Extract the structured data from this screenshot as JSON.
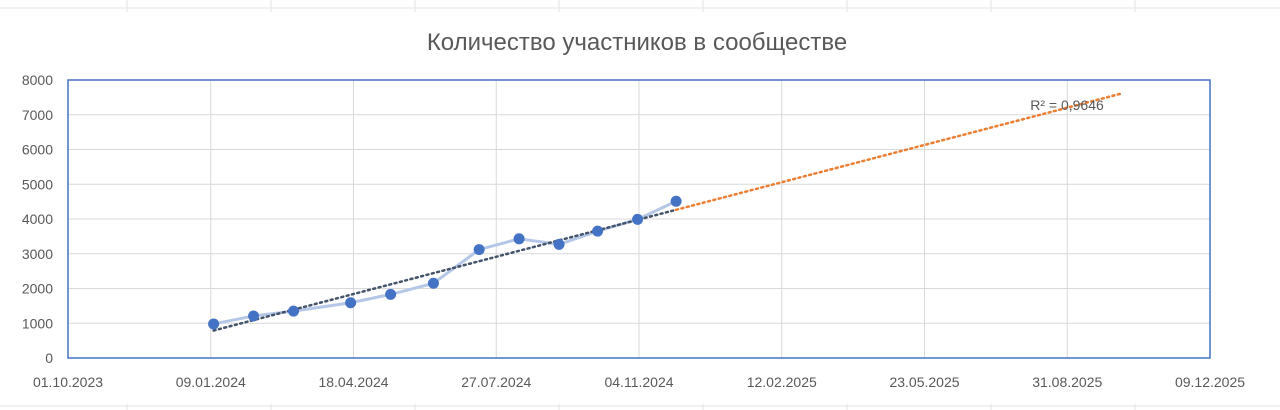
{
  "chart_data": {
    "type": "line",
    "title": "Количество участников в сообществе",
    "ylim": [
      0,
      8000
    ],
    "y_ticks": [
      "0",
      "1000",
      "2000",
      "3000",
      "4000",
      "5000",
      "6000",
      "7000",
      "8000"
    ],
    "x_ticks": [
      "01.10.2023",
      "09.01.2024",
      "18.04.2024",
      "27.07.2024",
      "04.11.2024",
      "12.02.2025",
      "23.05.2025",
      "31.08.2025",
      "09.12.2025"
    ],
    "grid": true,
    "series": [
      {
        "name": "",
        "x": [
          "11.01.2024",
          "08.02.2024",
          "07.03.2024",
          "16.04.2024",
          "14.05.2024",
          "13.06.2024",
          "15.07.2024",
          "12.08.2024",
          "09.09.2024",
          "06.10.2024",
          "03.11.2024",
          "30.11.2024"
        ],
        "values": [
          980,
          1210,
          1350,
          1590,
          1830,
          2150,
          3120,
          3430,
          3270,
          3650,
          3990,
          4510
        ]
      }
    ],
    "trendline": {
      "type": "linear",
      "r2_label": "R² = 0,9646",
      "from": "11.01.2024",
      "to": "07.10.2025",
      "start_value": 790,
      "end_value": 7600
    },
    "colors": {
      "line": "#B4C7E7",
      "marker": "#4472C4",
      "trend": "#44546A",
      "forecast": "#ED7D31",
      "plot_border": "#4472C4",
      "grid": "#D9D9D9"
    }
  }
}
